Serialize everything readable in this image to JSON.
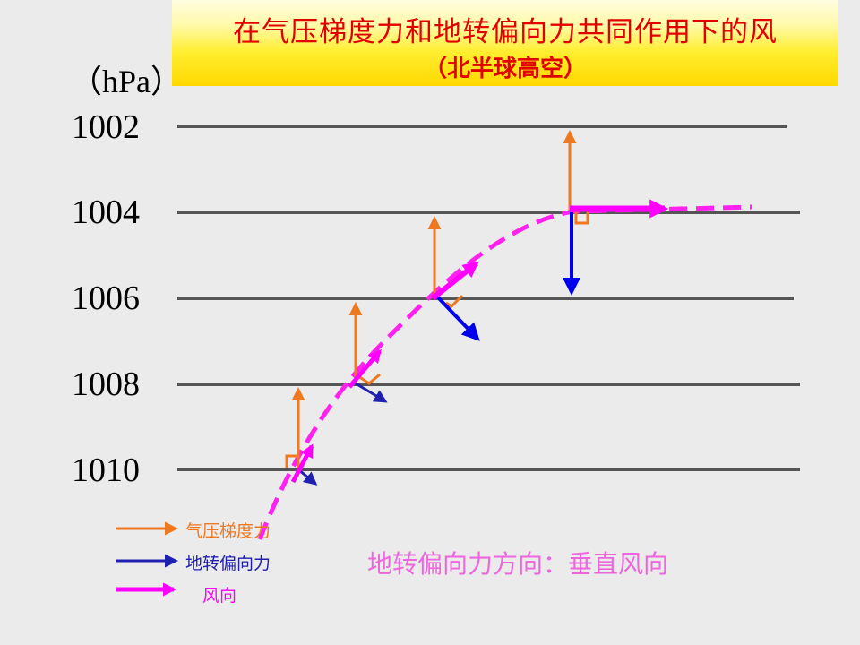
{
  "title": {
    "main": "在气压梯度力和地转偏向力共同作用下的风",
    "sub": "（北半球高空）"
  },
  "unit_label": "（hPa）",
  "isobars": [
    "1002",
    "1004",
    "1006",
    "1008",
    "1010"
  ],
  "legend": {
    "pressure_gradient_force": "气压梯度力",
    "coriolis_force": "地转偏向力",
    "wind_direction": "风向"
  },
  "note": "地转偏向力方向：垂直风向",
  "colors": {
    "pressure_gradient_force": "#f07820",
    "coriolis_force": "#2020b0",
    "coriolis_force_strong": "#0000ee",
    "wind": "#ff00ff",
    "isobar": "#555555",
    "title": "#e00000"
  }
}
